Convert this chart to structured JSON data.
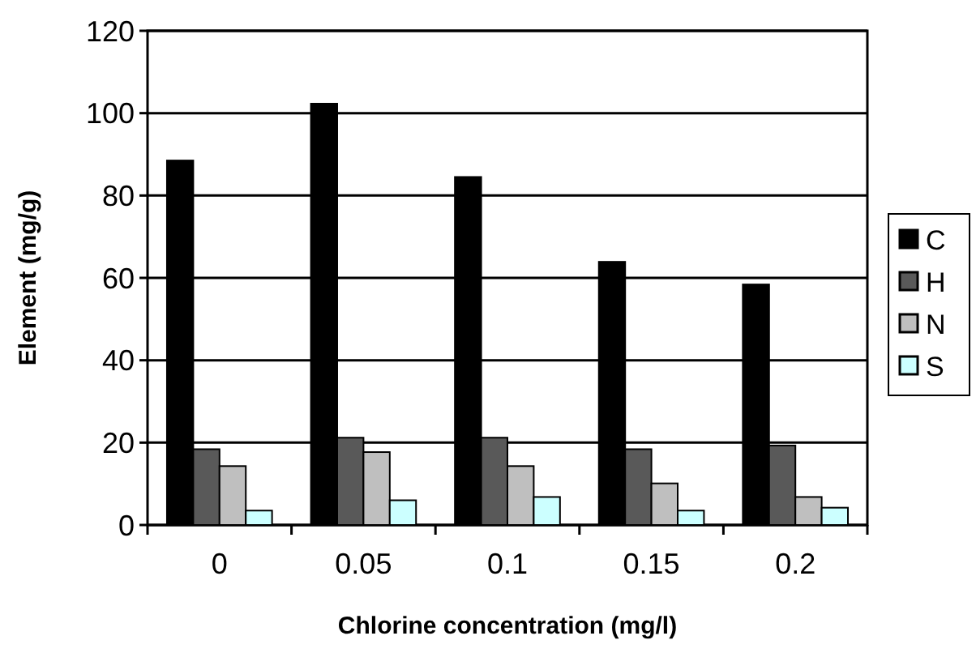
{
  "chart_data": {
    "type": "bar",
    "xlabel": "Chlorine concentration (mg/l)",
    "ylabel": "Element (mg/g)",
    "categories": [
      "0",
      "0.05",
      "0.1",
      "0.15",
      "0.2"
    ],
    "series": [
      {
        "name": "C",
        "color": "#000000",
        "values": [
          88.5,
          102.3,
          84.5,
          63.9,
          58.4
        ]
      },
      {
        "name": "H",
        "color": "#595959",
        "values": [
          18.4,
          21.2,
          21.2,
          18.4,
          19.3
        ]
      },
      {
        "name": "N",
        "color": "#bfbfbf",
        "values": [
          14.3,
          17.7,
          14.3,
          10.1,
          6.8
        ]
      },
      {
        "name": "S",
        "color": "#ccffff",
        "values": [
          3.5,
          6.0,
          6.8,
          3.5,
          4.2
        ]
      }
    ],
    "ylim": [
      0,
      120
    ],
    "yticks": [
      0,
      20,
      40,
      60,
      80,
      100,
      120
    ],
    "grid": "y",
    "legend": "right"
  }
}
